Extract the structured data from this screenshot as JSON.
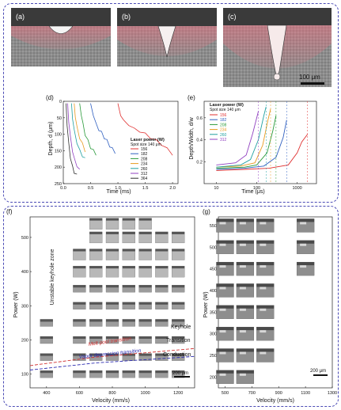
{
  "panels": {
    "a": {
      "label": "(a)"
    },
    "b": {
      "label": "(b)"
    },
    "c": {
      "label": "(c)",
      "scalebar": "100 μm"
    },
    "d": {
      "label": "(d)",
      "xlabel": "Time (ms)",
      "ylabel": "Depth, d (μm)",
      "xticks": [
        "0.0",
        "0.5",
        "1.0",
        "1.5",
        "2.0"
      ],
      "yticks": [
        "0",
        "50",
        "100",
        "150",
        "200",
        "250"
      ],
      "legend_title": "Laser power (W)",
      "legend_subtitle": "Spot size 140 μm"
    },
    "e": {
      "label": "(e)",
      "xlabel": "Time (μs)",
      "ylabel": "Depth/Width, d/w",
      "xticks": [
        "10",
        "100",
        "1000"
      ],
      "yticks": [
        "0.2",
        "0.4",
        "0.6"
      ],
      "legend_title": "Laser power (W)",
      "legend_subtitle": "Spot size 140 μm"
    },
    "f": {
      "label": "(f)",
      "xlabel": "Velocity (mm/s)",
      "ylabel": "Power (W)",
      "xticks": [
        "400",
        "600",
        "800",
        "1000",
        "1200"
      ],
      "yticks": [
        "100",
        "200",
        "300",
        "400",
        "500"
      ],
      "zones": {
        "unstable": "Unstable keyhole zone",
        "keyhole": "Keyhole",
        "transition": "Transition",
        "conduction": "Conduction"
      },
      "melt_pool_transition": "Melt pool transition",
      "vapor_depression_transition": "Vapor depression transition",
      "scalebar": "200 μm"
    },
    "g": {
      "label": "(g)",
      "xlabel": "Velocity (mm/s)",
      "ylabel": "Power (W)",
      "xticks": [
        "500",
        "700",
        "900",
        "1100",
        "1300"
      ],
      "yticks": [
        "200",
        "250",
        "300",
        "350",
        "400",
        "450",
        "500",
        "550"
      ],
      "scalebar": "200 μm"
    }
  },
  "legend_powers": [
    "156",
    "182",
    "208",
    "234",
    "260",
    "312",
    "364"
  ],
  "legend_colors": [
    "#e03030",
    "#3060c0",
    "#2a9a3a",
    "#e89a20",
    "#20a0a0",
    "#9040c0",
    "#303030"
  ],
  "chart_data": [
    {
      "type": "line",
      "panel": "d",
      "xlabel": "Time (ms)",
      "ylabel": "Depth, d (μm)",
      "xlim": [
        0,
        2.1
      ],
      "ylim": [
        0,
        250
      ],
      "y_inverted": true,
      "series": [
        {
          "name": "156",
          "color": "#e03030",
          "points": [
            [
              1.0,
              10
            ],
            [
              1.05,
              40
            ],
            [
              1.1,
              60
            ],
            [
              1.2,
              70
            ],
            [
              1.3,
              85
            ],
            [
              1.4,
              90
            ],
            [
              1.5,
              100
            ],
            [
              1.6,
              110
            ],
            [
              1.7,
              120
            ],
            [
              1.8,
              130
            ],
            [
              1.9,
              145
            ],
            [
              2.0,
              160
            ]
          ]
        },
        {
          "name": "182",
          "color": "#3060c0",
          "points": [
            [
              0.5,
              10
            ],
            [
              0.55,
              40
            ],
            [
              0.6,
              70
            ],
            [
              0.65,
              85
            ],
            [
              0.7,
              95
            ],
            [
              0.75,
              110
            ],
            [
              0.8,
              120
            ],
            [
              0.85,
              135
            ],
            [
              0.9,
              145
            ],
            [
              0.95,
              155
            ]
          ]
        },
        {
          "name": "208",
          "color": "#2a9a3a",
          "points": [
            [
              0.3,
              10
            ],
            [
              0.33,
              40
            ],
            [
              0.36,
              70
            ],
            [
              0.4,
              100
            ],
            [
              0.45,
              120
            ],
            [
              0.5,
              140
            ],
            [
              0.55,
              150
            ],
            [
              0.6,
              160
            ]
          ]
        },
        {
          "name": "234",
          "color": "#e89a20",
          "points": [
            [
              0.2,
              10
            ],
            [
              0.22,
              45
            ],
            [
              0.25,
              80
            ],
            [
              0.3,
              110
            ],
            [
              0.35,
              130
            ],
            [
              0.4,
              150
            ]
          ]
        },
        {
          "name": "260",
          "color": "#20a0a0",
          "points": [
            [
              0.15,
              10
            ],
            [
              0.17,
              50
            ],
            [
              0.2,
              90
            ],
            [
              0.25,
              125
            ],
            [
              0.3,
              150
            ],
            [
              0.35,
              165
            ],
            [
              0.4,
              175
            ]
          ]
        },
        {
          "name": "312",
          "color": "#9040c0",
          "points": [
            [
              0.08,
              10
            ],
            [
              0.1,
              60
            ],
            [
              0.13,
              110
            ],
            [
              0.17,
              150
            ],
            [
              0.2,
              175
            ],
            [
              0.25,
              195
            ],
            [
              0.3,
              210
            ]
          ]
        },
        {
          "name": "364",
          "color": "#303030",
          "points": [
            [
              0.05,
              10
            ],
            [
              0.07,
              70
            ],
            [
              0.1,
              130
            ],
            [
              0.13,
              170
            ],
            [
              0.17,
              200
            ],
            [
              0.2,
              215
            ],
            [
              0.25,
              225
            ]
          ]
        }
      ]
    },
    {
      "type": "line",
      "panel": "e",
      "xlabel": "Time (μs)",
      "ylabel": "Depth/Width, d/w",
      "xlim": [
        5,
        3000
      ],
      "ylim": [
        0,
        0.75
      ],
      "x_scale": "log",
      "series": [
        {
          "name": "156",
          "color": "#e03030",
          "points": [
            [
              10,
              0.12
            ],
            [
              50,
              0.13
            ],
            [
              200,
              0.14
            ],
            [
              600,
              0.17
            ],
            [
              1000,
              0.28
            ],
            [
              1300,
              0.38
            ],
            [
              1800,
              0.45
            ]
          ]
        },
        {
          "name": "182",
          "color": "#3060c0",
          "points": [
            [
              10,
              0.13
            ],
            [
              50,
              0.14
            ],
            [
              150,
              0.16
            ],
            [
              300,
              0.24
            ],
            [
              450,
              0.42
            ],
            [
              550,
              0.58
            ]
          ]
        },
        {
          "name": "208",
          "color": "#2a9a3a",
          "points": [
            [
              10,
              0.14
            ],
            [
              50,
              0.15
            ],
            [
              100,
              0.17
            ],
            [
              180,
              0.28
            ],
            [
              250,
              0.48
            ],
            [
              300,
              0.62
            ]
          ]
        },
        {
          "name": "234",
          "color": "#e89a20",
          "points": [
            [
              10,
              0.15
            ],
            [
              40,
              0.16
            ],
            [
              90,
              0.19
            ],
            [
              140,
              0.35
            ],
            [
              190,
              0.58
            ],
            [
              220,
              0.68
            ]
          ]
        },
        {
          "name": "260",
          "color": "#20a0a0",
          "points": [
            [
              10,
              0.15
            ],
            [
              40,
              0.17
            ],
            [
              70,
              0.22
            ],
            [
              110,
              0.4
            ],
            [
              150,
              0.62
            ],
            [
              170,
              0.7
            ]
          ]
        },
        {
          "name": "312",
          "color": "#9040c0",
          "points": [
            [
              10,
              0.17
            ],
            [
              30,
              0.19
            ],
            [
              55,
              0.26
            ],
            [
              80,
              0.46
            ],
            [
              110,
              0.66
            ]
          ]
        }
      ]
    }
  ]
}
